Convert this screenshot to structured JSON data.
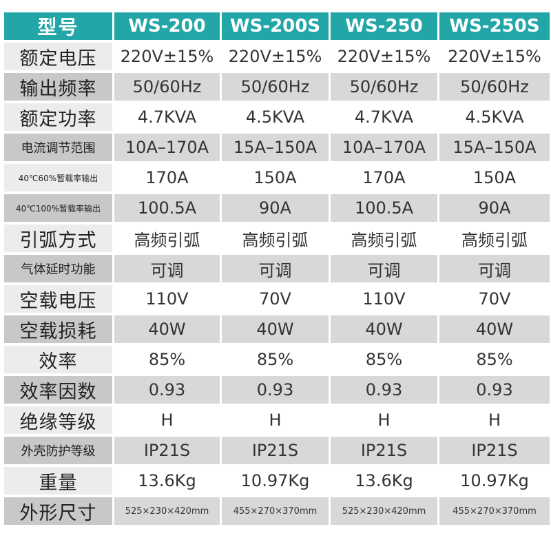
{
  "header": {
    "label": "型号",
    "models": [
      "WS-200",
      "WS-200S",
      "WS-250",
      "WS-250S"
    ]
  },
  "rows": [
    {
      "label": "额定电压",
      "values": [
        "220V±15%",
        "220V±15%",
        "220V±15%",
        "220V±15%"
      ]
    },
    {
      "label": "输出频率",
      "values": [
        "50/60Hz",
        "50/60Hz",
        "50/60Hz",
        "50/60Hz"
      ]
    },
    {
      "label": "额定功率",
      "values": [
        "4.7KVA",
        "4.5KVA",
        "4.7KVA",
        "4.5KVA"
      ]
    },
    {
      "label": "电流调节范围",
      "values": [
        "10A–170A",
        "15A–150A",
        "10A–170A",
        "15A–150A"
      ]
    },
    {
      "label": "40℃60%暂载率输出",
      "values": [
        "170A",
        "150A",
        "170A",
        "150A"
      ]
    },
    {
      "label": "40℃100%暂载率输出",
      "values": [
        "100.5A",
        "90A",
        "100.5A",
        "90A"
      ]
    },
    {
      "label": "引弧方式",
      "values": [
        "高频引弧",
        "高频引弧",
        "高频引弧",
        "高频引弧"
      ]
    },
    {
      "label": "气体延时功能",
      "values": [
        "可调",
        "可调",
        "可调",
        "可调"
      ]
    },
    {
      "label": "空载电压",
      "values": [
        "110V",
        "70V",
        "110V",
        "70V"
      ]
    },
    {
      "label": "空载损耗",
      "values": [
        "40W",
        "40W",
        "40W",
        "40W"
      ]
    },
    {
      "label": "效率",
      "values": [
        "85%",
        "85%",
        "85%",
        "85%"
      ]
    },
    {
      "label": "效率因数",
      "values": [
        "0.93",
        "0.93",
        "0.93",
        "0.93"
      ]
    },
    {
      "label": "绝缘等级",
      "values": [
        "H",
        "H",
        "H",
        "H"
      ]
    },
    {
      "label": "外壳防护等级",
      "values": [
        "IP21S",
        "IP21S",
        "IP21S",
        "IP21S"
      ]
    },
    {
      "label": "重量",
      "values": [
        "13.6Kg",
        "10.97Kg",
        "13.6Kg",
        "10.97Kg"
      ]
    },
    {
      "label": "外形尺寸",
      "values": [
        "525×230×420mm",
        "455×270×370mm",
        "525×230×420mm",
        "455×270×370mm"
      ]
    }
  ]
}
